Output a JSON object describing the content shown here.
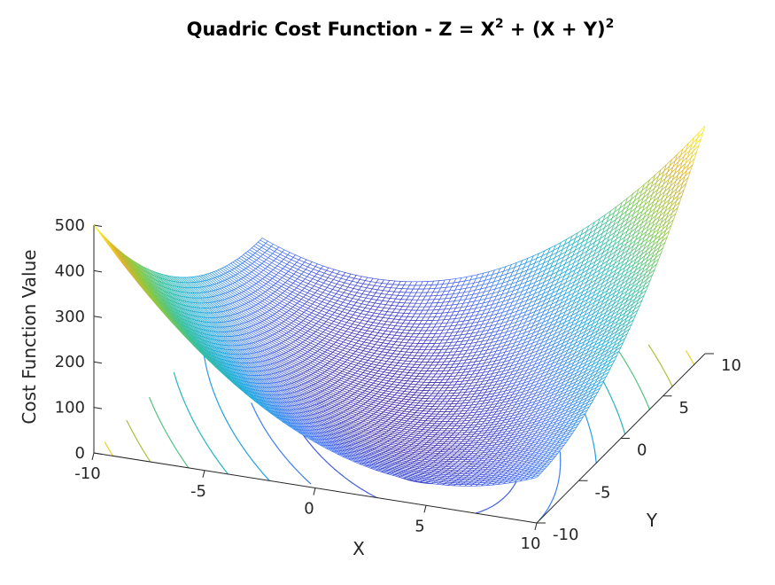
{
  "chart_data": {
    "type": "surface",
    "title": {
      "prefix": "Quadric Cost Function - Z = X",
      "sup1": "2",
      "mid": " + (X + Y)",
      "sup2": "2"
    },
    "function": "Z = X^2 + (X + Y)^2",
    "xlabel": "X",
    "ylabel": "Y",
    "zlabel": "Cost Function Value",
    "xlim": [
      -10,
      10
    ],
    "ylim": [
      -10,
      10
    ],
    "zlim": [
      0,
      500
    ],
    "xticks": [
      -10,
      -5,
      0,
      5,
      10
    ],
    "yticks": [
      -10,
      -5,
      0,
      5,
      10
    ],
    "zticks": [
      0,
      100,
      200,
      300,
      400,
      500
    ],
    "x_tick_labels": [
      "-10",
      "-5",
      "0",
      "5",
      "10"
    ],
    "y_tick_labels": [
      "-10",
      "-5",
      "0",
      "5",
      "10"
    ],
    "z_tick_labels": [
      "0",
      "100",
      "200",
      "300",
      "400",
      "500"
    ],
    "mesh_resolution": 81,
    "contour_levels": [
      10,
      30,
      60,
      100,
      150,
      210,
      280,
      360,
      450
    ],
    "colormap": [
      "#3e26a8",
      "#4772fa",
      "#1aa8e0",
      "#33c0a0",
      "#88c942",
      "#e0b12e",
      "#f9fb15"
    ],
    "corner_values": [
      {
        "x": -10,
        "y": -10,
        "z": 500
      },
      {
        "x": -10,
        "y": 10,
        "z": 100
      },
      {
        "x": 10,
        "y": -10,
        "z": 100
      },
      {
        "x": 10,
        "y": 10,
        "z": 500
      }
    ],
    "grid": false,
    "legend": "none"
  }
}
